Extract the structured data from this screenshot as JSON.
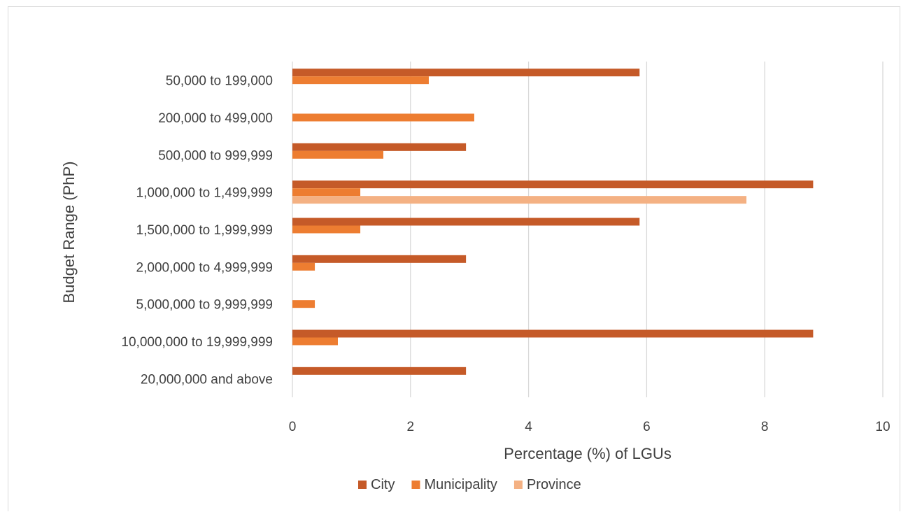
{
  "chart_data": {
    "type": "bar",
    "orientation": "horizontal",
    "title": "",
    "xlabel": "Percentage (%) of LGUs",
    "ylabel": "Budget Range (PhP)",
    "xlim": [
      0,
      10
    ],
    "xticks": [
      "0",
      "2",
      "4",
      "6",
      "8",
      "10"
    ],
    "grid": true,
    "legend_position": "bottom",
    "categories": [
      "50,000 to 199,000",
      "200,000 to 499,000",
      "500,000 to 999,999",
      "1,000,000 to 1,499,999",
      "1,500,000 to 1,999,999",
      "2,000,000 to 4,999,999",
      "5,000,000 to 9,999,999",
      "10,000,000 to 19,999,999",
      "20,000,000 and above"
    ],
    "series": [
      {
        "name": "City",
        "color": "#c55a28",
        "values": [
          5.88,
          0,
          2.94,
          8.82,
          5.88,
          2.94,
          0,
          8.82,
          2.94
        ]
      },
      {
        "name": "Municipality",
        "color": "#ed7d31",
        "values": [
          2.31,
          3.08,
          1.54,
          1.15,
          1.15,
          0.38,
          0.38,
          0.77,
          0
        ]
      },
      {
        "name": "Province",
        "color": "#f4b183",
        "values": [
          0,
          0,
          0,
          7.69,
          0,
          0,
          0,
          0,
          0
        ]
      }
    ]
  }
}
